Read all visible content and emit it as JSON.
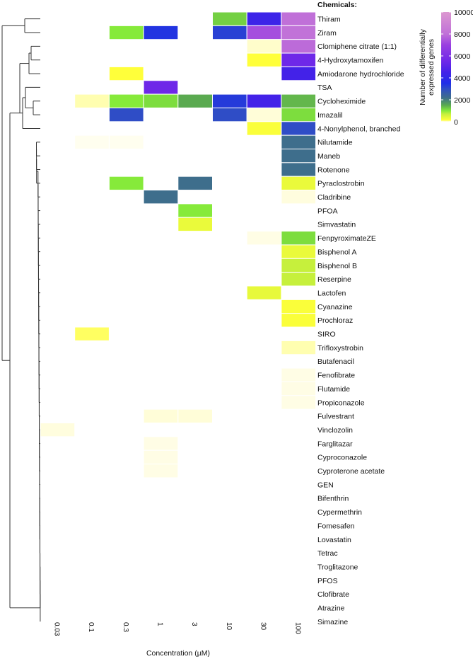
{
  "chart_data": {
    "type": "heatmap",
    "title": "Chemicals:",
    "xlabel": "Concentration (µM)",
    "ylabel": "",
    "concentrations": [
      "0.03",
      "0.1",
      "0.3",
      "1",
      "3",
      "10",
      "30",
      "100"
    ],
    "chemicals": [
      "Thiram",
      "Ziram",
      "Clomiphene citrate (1:1)",
      "4-Hydroxytamoxifen",
      "Amiodarone hydrochloride",
      "TSA",
      "Cycloheximide",
      "Imazalil",
      "4-Nonylphenol, branched",
      "Nilutamide",
      "Maneb",
      "Rotenone",
      "Pyraclostrobin",
      "Cladribine",
      "PFOA",
      "Simvastatin",
      "FenpyroximateZE",
      "Bisphenol A",
      "Bisphenol B",
      "Reserpine",
      "Lactofen",
      "Cyanazine",
      "Prochloraz",
      "SIRO",
      "Trifloxystrobin",
      "Butafenacil",
      "Fenofibrate",
      "Flutamide",
      "Propiconazole",
      "Fulvestrant",
      "Vinclozolin",
      "Farglitazar",
      "Cyproconazole",
      "Cyproterone acetate",
      "GEN",
      "Bifenthrin",
      "Cypermethrin",
      "Fomesafen",
      "Lovastatin",
      "Tetrac",
      "Troglitazone",
      "PFOS",
      "Clofibrate",
      "Atrazine",
      "Simazine"
    ],
    "values": [
      [
        null,
        null,
        null,
        null,
        null,
        1200,
        4300,
        8000
      ],
      [
        null,
        null,
        1000,
        3400,
        null,
        3200,
        7300,
        8100
      ],
      [
        null,
        null,
        null,
        null,
        null,
        null,
        40,
        7900
      ],
      [
        null,
        null,
        null,
        null,
        null,
        null,
        150,
        5500
      ],
      [
        null,
        null,
        150,
        null,
        null,
        null,
        null,
        4500
      ],
      [
        null,
        null,
        null,
        5500,
        null,
        null,
        null,
        null
      ],
      [
        null,
        60,
        1000,
        1100,
        1500,
        3300,
        4500,
        1400
      ],
      [
        null,
        null,
        3000,
        null,
        null,
        3000,
        30,
        1100
      ],
      [
        null,
        null,
        null,
        null,
        null,
        null,
        200,
        3000
      ],
      [
        null,
        12,
        12,
        null,
        null,
        null,
        null,
        2200
      ],
      [
        null,
        null,
        null,
        null,
        null,
        null,
        null,
        2200
      ],
      [
        null,
        null,
        null,
        null,
        null,
        null,
        null,
        2200
      ],
      [
        null,
        null,
        1000,
        null,
        2200,
        null,
        null,
        350
      ],
      [
        null,
        null,
        null,
        2200,
        null,
        null,
        null,
        25
      ],
      [
        null,
        null,
        null,
        null,
        1000,
        null,
        null,
        null
      ],
      [
        null,
        null,
        null,
        null,
        350,
        null,
        null,
        null
      ],
      [
        null,
        null,
        null,
        null,
        null,
        null,
        20,
        1100
      ],
      [
        null,
        null,
        null,
        null,
        null,
        null,
        null,
        350
      ],
      [
        null,
        null,
        null,
        null,
        null,
        null,
        null,
        700
      ],
      [
        null,
        null,
        null,
        null,
        null,
        null,
        null,
        700
      ],
      [
        null,
        null,
        null,
        null,
        null,
        null,
        380,
        null
      ],
      [
        null,
        null,
        null,
        null,
        null,
        null,
        null,
        200
      ],
      [
        null,
        null,
        null,
        null,
        null,
        null,
        null,
        200
      ],
      [
        null,
        120,
        null,
        null,
        null,
        null,
        null,
        null
      ],
      [
        null,
        null,
        null,
        null,
        null,
        null,
        null,
        60
      ],
      [
        null,
        null,
        null,
        null,
        null,
        null,
        null,
        null
      ],
      [
        null,
        null,
        null,
        null,
        null,
        null,
        null,
        20
      ],
      [
        null,
        null,
        null,
        null,
        null,
        null,
        null,
        20
      ],
      [
        null,
        null,
        null,
        null,
        null,
        null,
        null,
        20
      ],
      [
        null,
        null,
        null,
        30,
        30,
        null,
        null,
        null
      ],
      [
        25,
        null,
        null,
        null,
        null,
        null,
        null,
        null
      ],
      [
        null,
        null,
        null,
        20,
        null,
        null,
        null,
        null
      ],
      [
        null,
        null,
        null,
        20,
        null,
        null,
        null,
        null
      ],
      [
        null,
        null,
        null,
        20,
        null,
        null,
        null,
        null
      ],
      [
        null,
        null,
        null,
        null,
        null,
        null,
        null,
        null
      ],
      [
        null,
        null,
        null,
        null,
        null,
        null,
        null,
        null
      ],
      [
        null,
        null,
        null,
        null,
        null,
        null,
        null,
        null
      ],
      [
        null,
        null,
        null,
        null,
        null,
        null,
        null,
        null
      ],
      [
        null,
        null,
        null,
        null,
        null,
        null,
        null,
        null
      ],
      [
        null,
        null,
        null,
        null,
        null,
        null,
        null,
        null
      ],
      [
        null,
        null,
        null,
        null,
        null,
        null,
        null,
        null
      ],
      [
        null,
        null,
        null,
        null,
        null,
        null,
        null,
        null
      ],
      [
        null,
        null,
        null,
        null,
        null,
        null,
        null,
        null
      ],
      [
        null,
        null,
        null,
        null,
        null,
        null,
        null,
        null
      ],
      [
        null,
        null,
        null,
        null,
        null,
        null,
        null,
        null
      ]
    ],
    "legend": {
      "title_line1": "Number of differentially",
      "title_line2": "expressed genes",
      "range": [
        0,
        10000
      ],
      "ticks": [
        "10000",
        "8000",
        "6000",
        "4000",
        "2000",
        "0"
      ],
      "tick_values": [
        10000,
        8000,
        6000,
        4000,
        2000,
        0
      ],
      "position": "top-right"
    },
    "dendrogram": "hierarchical clustering of chemicals (left side)"
  },
  "colors": {
    "palette": [
      "#ffffff",
      "#fffde5",
      "#ffff3a",
      "#c6f03c",
      "#86ea3a",
      "#5aaa50",
      "#3e6e8c",
      "#2f4dc6",
      "#1f2ee8",
      "#4322e8",
      "#6e28e8",
      "#9a40e0",
      "#c070d8",
      "#dc98d0"
    ],
    "palette_stops": [
      0,
      20,
      150,
      700,
      1000,
      1500,
      2200,
      3000,
      3500,
      4500,
      5500,
      7000,
      8000,
      10000
    ],
    "tree": "#333333",
    "cell_border": "#ffffff"
  }
}
